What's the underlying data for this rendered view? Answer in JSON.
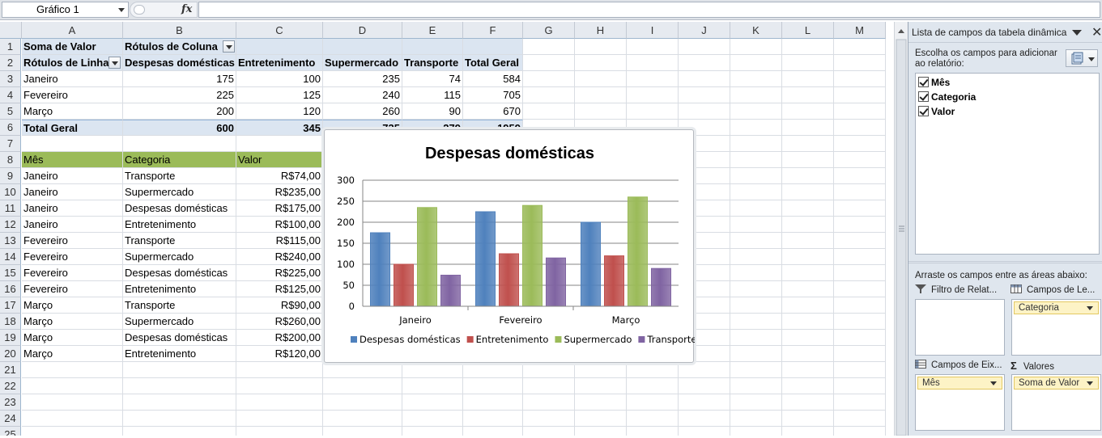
{
  "formula_bar": {
    "name_box": "Gráfico 1",
    "fx_label": "fx",
    "formula": ""
  },
  "columns": [
    "A",
    "B",
    "C",
    "D",
    "E",
    "F",
    "G",
    "H",
    "I",
    "J",
    "K",
    "L",
    "M"
  ],
  "rows": [
    "1",
    "2",
    "3",
    "4",
    "5",
    "6",
    "7",
    "8",
    "9",
    "10",
    "11",
    "12",
    "13",
    "14",
    "15",
    "16",
    "17",
    "18",
    "19",
    "20",
    "21",
    "22",
    "23",
    "24",
    "25"
  ],
  "pivot": {
    "sum_label": "Soma de Valor",
    "col_labels": "Rótulos de Coluna",
    "row_labels": "Rótulos de Linha",
    "headers": [
      "Despesas domésticas",
      "Entretenimento",
      "Supermercado",
      "Transporte",
      "Total Geral"
    ],
    "rows": [
      {
        "label": "Janeiro",
        "values": [
          "175",
          "100",
          "235",
          "74",
          "584"
        ]
      },
      {
        "label": "Fevereiro",
        "values": [
          "225",
          "125",
          "240",
          "115",
          "705"
        ]
      },
      {
        "label": "Março",
        "values": [
          "200",
          "120",
          "260",
          "90",
          "670"
        ]
      }
    ],
    "total": {
      "label": "Total Geral",
      "values": [
        "600",
        "345",
        "735",
        "279",
        "1959"
      ]
    }
  },
  "table": {
    "headers": [
      "Mês",
      "Categoria",
      "Valor"
    ],
    "rows": [
      [
        "Janeiro",
        "Transporte",
        "R$74,00"
      ],
      [
        "Janeiro",
        "Supermercado",
        "R$235,00"
      ],
      [
        "Janeiro",
        "Despesas domésticas",
        "R$175,00"
      ],
      [
        "Janeiro",
        "Entretenimento",
        "R$100,00"
      ],
      [
        "Fevereiro",
        "Transporte",
        "R$115,00"
      ],
      [
        "Fevereiro",
        "Supermercado",
        "R$240,00"
      ],
      [
        "Fevereiro",
        "Despesas domésticas",
        "R$225,00"
      ],
      [
        "Fevereiro",
        "Entretenimento",
        "R$125,00"
      ],
      [
        "Março",
        "Transporte",
        "R$90,00"
      ],
      [
        "Março",
        "Supermercado",
        "R$260,00"
      ],
      [
        "Março",
        "Despesas domésticas",
        "R$200,00"
      ],
      [
        "Março",
        "Entretenimento",
        "R$120,00"
      ]
    ]
  },
  "chart_data": {
    "type": "bar",
    "title": "Despesas domésticas",
    "categories": [
      "Janeiro",
      "Fevereiro",
      "Março"
    ],
    "series": [
      {
        "name": "Despesas domésticas",
        "values": [
          175,
          225,
          200
        ],
        "color": "#4f81bd"
      },
      {
        "name": "Entretenimento",
        "values": [
          100,
          125,
          120
        ],
        "color": "#c0504d"
      },
      {
        "name": "Supermercado",
        "values": [
          235,
          240,
          260
        ],
        "color": "#9bbb59"
      },
      {
        "name": "Transporte",
        "values": [
          74,
          115,
          90
        ],
        "color": "#8064a2"
      }
    ],
    "ylim": [
      0,
      300
    ],
    "yticks": [
      0,
      50,
      100,
      150,
      200,
      250,
      300
    ],
    "grid": true,
    "legend": "bottom"
  },
  "field_list": {
    "title": "Lista de campos da tabela dinâmica",
    "choose_text": "Escolha os campos para adicionar ao relatório:",
    "fields": [
      "Mês",
      "Categoria",
      "Valor"
    ],
    "drag_text": "Arraste os campos entre as áreas abaixo:",
    "areas": {
      "filter": {
        "label": "Filtro de Relat...",
        "items": []
      },
      "columns": {
        "label": "Campos de Le...",
        "items": [
          "Categoria"
        ]
      },
      "rows": {
        "label": "Campos de Eix...",
        "items": [
          "Mês"
        ]
      },
      "values": {
        "label": "Valores",
        "items": [
          "Soma de Valor"
        ]
      }
    }
  }
}
